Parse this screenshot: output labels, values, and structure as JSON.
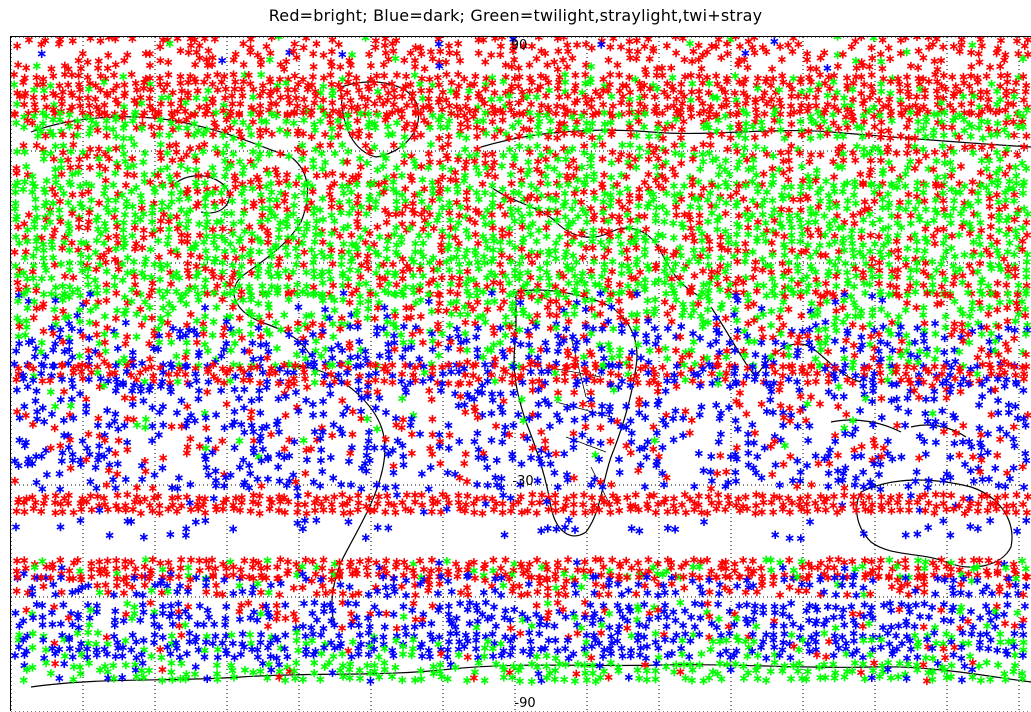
{
  "title": "Red=bright; Blue=dark; Green=twilight,straylight,twi+stray",
  "colors": {
    "bright": "#ff0000",
    "dark": "#0000ff",
    "twilight_straylight": "#00ff00",
    "coast": "#000000",
    "grid": "#000000"
  },
  "map_labels": {
    "top_center": "90",
    "mid_center": "-30",
    "bottom_center": "-90"
  },
  "marker_glyph": "*"
}
